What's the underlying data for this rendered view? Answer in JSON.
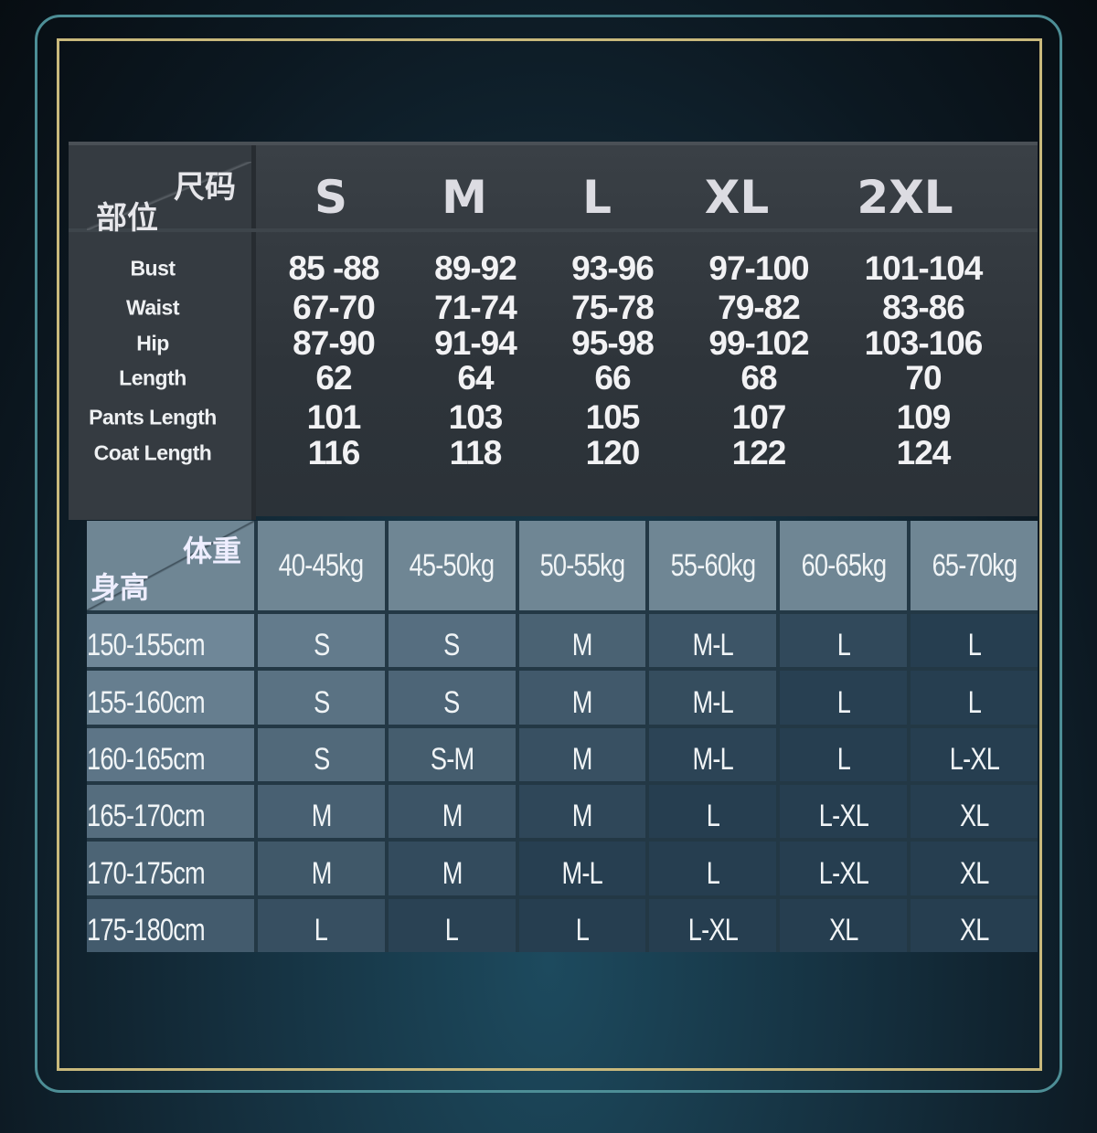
{
  "colors": {
    "frame_teal": "#4d8e96",
    "frame_gold": "#c9b97c",
    "top_table_bg": "#33393f",
    "grid_bg": "#5f7889"
  },
  "measure_table": {
    "corner_top": "尺码",
    "corner_bottom": "部位",
    "sizes": [
      "S",
      "M",
      "L",
      "XL",
      "2XL"
    ],
    "rows": [
      {
        "label": "Bust",
        "values": [
          "85 -88",
          "89-92",
          "93-96",
          "97-100",
          "101-104"
        ]
      },
      {
        "label": "Waist",
        "values": [
          "67-70",
          "71-74",
          "75-78",
          "79-82",
          "83-86"
        ]
      },
      {
        "label": "Hip",
        "values": [
          "87-90",
          "91-94",
          "95-98",
          "99-102",
          "103-106"
        ]
      },
      {
        "label": "Length",
        "values": [
          "62",
          "64",
          "66",
          "68",
          "70"
        ]
      },
      {
        "label": "Pants Length",
        "values": [
          "101",
          "103",
          "105",
          "107",
          "109"
        ]
      },
      {
        "label": "Coat Length",
        "values": [
          "116",
          "118",
          "120",
          "122",
          "124"
        ]
      }
    ]
  },
  "fit_table": {
    "corner_top": "体重",
    "corner_bottom": "身高",
    "weights": [
      "40-45kg",
      "45-50kg",
      "50-55kg",
      "55-60kg",
      "60-65kg",
      "65-70kg"
    ],
    "rows": [
      {
        "height": "150-155cm",
        "sizes": [
          "S",
          "S",
          "M",
          "M-L",
          "L",
          "L"
        ]
      },
      {
        "height": "155-160cm",
        "sizes": [
          "S",
          "S",
          "M",
          "M-L",
          "L",
          "L"
        ]
      },
      {
        "height": "160-165cm",
        "sizes": [
          "S",
          "S-M",
          "M",
          "M-L",
          "L",
          "L-XL"
        ]
      },
      {
        "height": "165-170cm",
        "sizes": [
          "M",
          "M",
          "M",
          "L",
          "L-XL",
          "XL"
        ]
      },
      {
        "height": "170-175cm",
        "sizes": [
          "M",
          "M",
          "M-L",
          "L",
          "L-XL",
          "XL"
        ]
      },
      {
        "height": "175-180cm",
        "sizes": [
          "L",
          "L",
          "L",
          "L-XL",
          "XL",
          "XL"
        ]
      }
    ]
  }
}
